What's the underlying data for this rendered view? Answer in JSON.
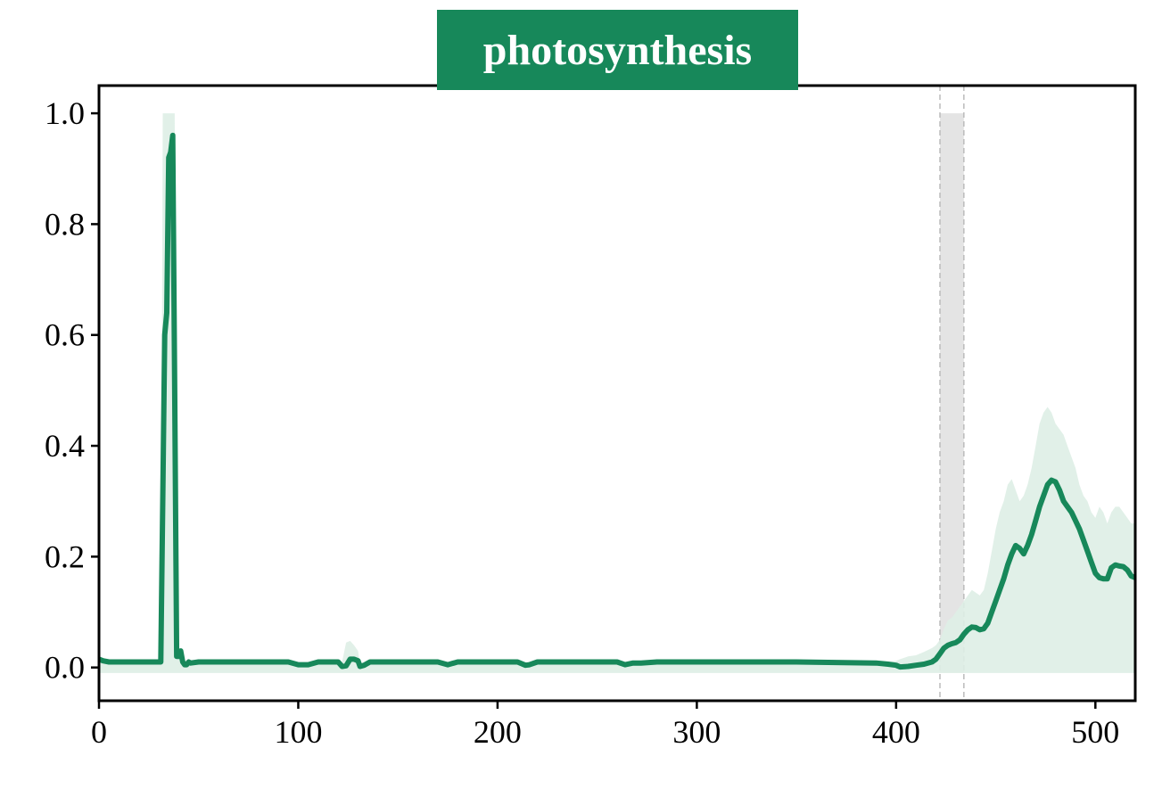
{
  "chart_data": {
    "type": "line",
    "title": "photosynthesis",
    "xlabel": "",
    "ylabel": "",
    "xlim": [
      0,
      520
    ],
    "ylim": [
      -0.06,
      1.05
    ],
    "x_ticks": [
      "0",
      "100",
      "200",
      "300",
      "400",
      "500"
    ],
    "y_ticks": [
      "0.0",
      "0.2",
      "0.4",
      "0.6",
      "0.8",
      "1.0"
    ],
    "grid": false,
    "legend": "none",
    "colors": {
      "line": "#17885a",
      "band": "#deeee6",
      "title_bg": "#17885a",
      "highlight": "#e4e4e4",
      "highlight_edge": "#bbbbbb"
    },
    "highlight_region": [
      422,
      434
    ],
    "series": [
      {
        "x": [
          0,
          2,
          5,
          10,
          20,
          30,
          31,
          32,
          33,
          34,
          35,
          36,
          37,
          38,
          39,
          40,
          41,
          42,
          43,
          44,
          45,
          46,
          50,
          60,
          80,
          95,
          100,
          105,
          110,
          120,
          122,
          124,
          126,
          128,
          130,
          131,
          133,
          136,
          140,
          160,
          170,
          175,
          180,
          200,
          210,
          214,
          216,
          220,
          240,
          260,
          264,
          268,
          272,
          280,
          300,
          350,
          370,
          390,
          396,
          400,
          402,
          406,
          410,
          414,
          418,
          420,
          422,
          424,
          426,
          428,
          430,
          432,
          434,
          436,
          438,
          440,
          442,
          444,
          446,
          448,
          450,
          452,
          454,
          456,
          458,
          460,
          462,
          464,
          466,
          468,
          470,
          472,
          474,
          476,
          478,
          480,
          482,
          484,
          486,
          488,
          490,
          492,
          494,
          496,
          498,
          500,
          502,
          504,
          506,
          508,
          510,
          512,
          514,
          516,
          518,
          520
        ],
        "y": [
          0.015,
          0.012,
          0.01,
          0.01,
          0.01,
          0.01,
          0.01,
          0.3,
          0.6,
          0.64,
          0.92,
          0.93,
          0.96,
          0.5,
          0.02,
          0.02,
          0.03,
          0.01,
          0.005,
          0.005,
          0.01,
          0.008,
          0.01,
          0.01,
          0.01,
          0.01,
          0.005,
          0.005,
          0.01,
          0.01,
          0.002,
          0.003,
          0.015,
          0.015,
          0.012,
          0.002,
          0.004,
          0.01,
          0.01,
          0.01,
          0.01,
          0.005,
          0.01,
          0.01,
          0.01,
          0.004,
          0.005,
          0.01,
          0.01,
          0.01,
          0.005,
          0.008,
          0.008,
          0.01,
          0.01,
          0.01,
          0.009,
          0.008,
          0.006,
          0.004,
          0.001,
          0.002,
          0.004,
          0.006,
          0.01,
          0.015,
          0.025,
          0.035,
          0.04,
          0.043,
          0.045,
          0.05,
          0.06,
          0.068,
          0.073,
          0.072,
          0.068,
          0.07,
          0.08,
          0.1,
          0.12,
          0.14,
          0.16,
          0.185,
          0.205,
          0.22,
          0.215,
          0.205,
          0.22,
          0.24,
          0.265,
          0.29,
          0.31,
          0.33,
          0.338,
          0.335,
          0.32,
          0.3,
          0.29,
          0.28,
          0.265,
          0.25,
          0.23,
          0.21,
          0.19,
          0.17,
          0.162,
          0.16,
          0.16,
          0.18,
          0.185,
          0.183,
          0.182,
          0.176,
          0.165,
          0.162
        ],
        "upper": [
          0.015,
          0.012,
          0.01,
          0.01,
          0.01,
          0.01,
          0.01,
          1.0,
          1.0,
          1.0,
          1.0,
          1.0,
          1.0,
          1.0,
          0.02,
          0.02,
          0.03,
          0.01,
          0.005,
          0.005,
          0.01,
          0.008,
          0.01,
          0.01,
          0.01,
          0.01,
          0.005,
          0.005,
          0.01,
          0.01,
          0.01,
          0.045,
          0.048,
          0.04,
          0.03,
          0.005,
          0.005,
          0.01,
          0.01,
          0.01,
          0.01,
          0.005,
          0.01,
          0.01,
          0.01,
          0.004,
          0.005,
          0.01,
          0.01,
          0.01,
          0.005,
          0.008,
          0.008,
          0.01,
          0.01,
          0.01,
          0.009,
          0.01,
          0.01,
          0.012,
          0.015,
          0.02,
          0.022,
          0.028,
          0.035,
          0.04,
          0.05,
          0.07,
          0.085,
          0.09,
          0.1,
          0.11,
          0.12,
          0.13,
          0.14,
          0.135,
          0.13,
          0.14,
          0.17,
          0.21,
          0.25,
          0.28,
          0.3,
          0.33,
          0.34,
          0.32,
          0.3,
          0.31,
          0.33,
          0.36,
          0.4,
          0.44,
          0.46,
          0.47,
          0.46,
          0.44,
          0.43,
          0.42,
          0.4,
          0.38,
          0.36,
          0.33,
          0.31,
          0.3,
          0.28,
          0.27,
          0.29,
          0.28,
          0.26,
          0.28,
          0.29,
          0.29,
          0.28,
          0.27,
          0.26,
          0.26
        ],
        "lower": [
          -0.01,
          -0.01,
          -0.01,
          -0.01,
          -0.01,
          -0.01,
          -0.01,
          -0.01,
          -0.01,
          -0.01,
          -0.01,
          -0.01,
          -0.01,
          -0.01,
          -0.01,
          -0.01,
          -0.01,
          -0.01,
          -0.01,
          -0.01,
          -0.01,
          -0.01,
          -0.01,
          -0.01,
          -0.01,
          -0.01,
          -0.01,
          -0.01,
          -0.01,
          -0.01,
          -0.01,
          -0.01,
          -0.01,
          -0.01,
          -0.01,
          -0.01,
          -0.01,
          -0.01,
          -0.01,
          -0.01,
          -0.01,
          -0.01,
          -0.01,
          -0.01,
          -0.01,
          -0.01,
          -0.01,
          -0.01,
          -0.01,
          -0.01,
          -0.01,
          -0.01,
          -0.01,
          -0.01,
          -0.01,
          -0.01,
          -0.01,
          -0.01,
          -0.01,
          -0.01,
          -0.01,
          -0.01,
          -0.01,
          -0.01,
          -0.01,
          -0.01,
          -0.01,
          -0.01,
          -0.01,
          -0.01,
          -0.01,
          -0.01,
          -0.01,
          -0.01,
          -0.01,
          -0.01,
          -0.01,
          -0.01,
          -0.01,
          -0.01,
          -0.01,
          -0.01,
          -0.01,
          -0.01,
          -0.01,
          -0.01,
          -0.01,
          -0.01,
          -0.01,
          -0.01,
          -0.01,
          -0.01,
          -0.01,
          -0.01,
          -0.01,
          -0.01,
          -0.01,
          -0.01,
          -0.01,
          -0.01,
          -0.01,
          -0.01,
          -0.01,
          -0.01,
          -0.01,
          -0.01,
          -0.01,
          -0.01,
          -0.01,
          -0.01,
          -0.01,
          -0.01,
          -0.01,
          -0.01,
          -0.01,
          -0.01
        ]
      }
    ]
  }
}
